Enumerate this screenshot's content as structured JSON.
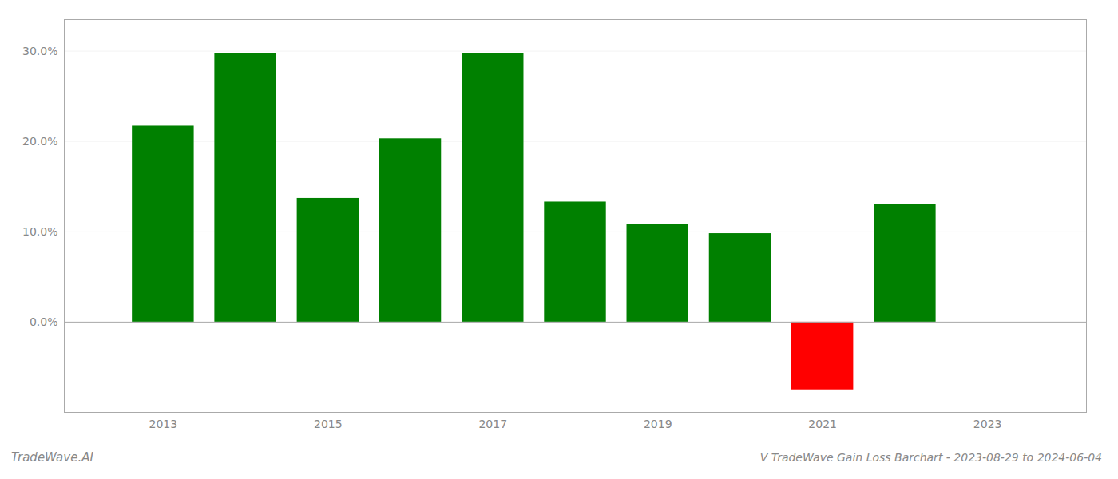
{
  "chart_data": {
    "type": "bar",
    "title": "V TradeWave Gain Loss Barchart - 2023-08-29 to 2024-06-04",
    "annotations": [
      "TradeWave.AI"
    ],
    "x": [
      2013,
      2014,
      2015,
      2016,
      2017,
      2018,
      2019,
      2020,
      2021,
      2022
    ],
    "values": [
      0.217,
      0.297,
      0.137,
      0.203,
      0.297,
      0.133,
      0.108,
      0.098,
      -0.075,
      0.13
    ],
    "colors": [
      "#008000",
      "#008000",
      "#008000",
      "#008000",
      "#008000",
      "#008000",
      "#008000",
      "#008000",
      "#ff0000",
      "#008000"
    ],
    "xlim": [
      2011.8,
      2024.2
    ],
    "xticks": [
      2013,
      2015,
      2017,
      2019,
      2021,
      2023
    ],
    "ylim": [
      -0.1,
      0.335
    ],
    "yticks": [
      {
        "value": 0.0,
        "label": "0.0%"
      },
      {
        "value": 0.1,
        "label": "10.0%"
      },
      {
        "value": 0.2,
        "label": "20.0%"
      },
      {
        "value": 0.3,
        "label": "30.0%"
      }
    ],
    "grid": true
  }
}
